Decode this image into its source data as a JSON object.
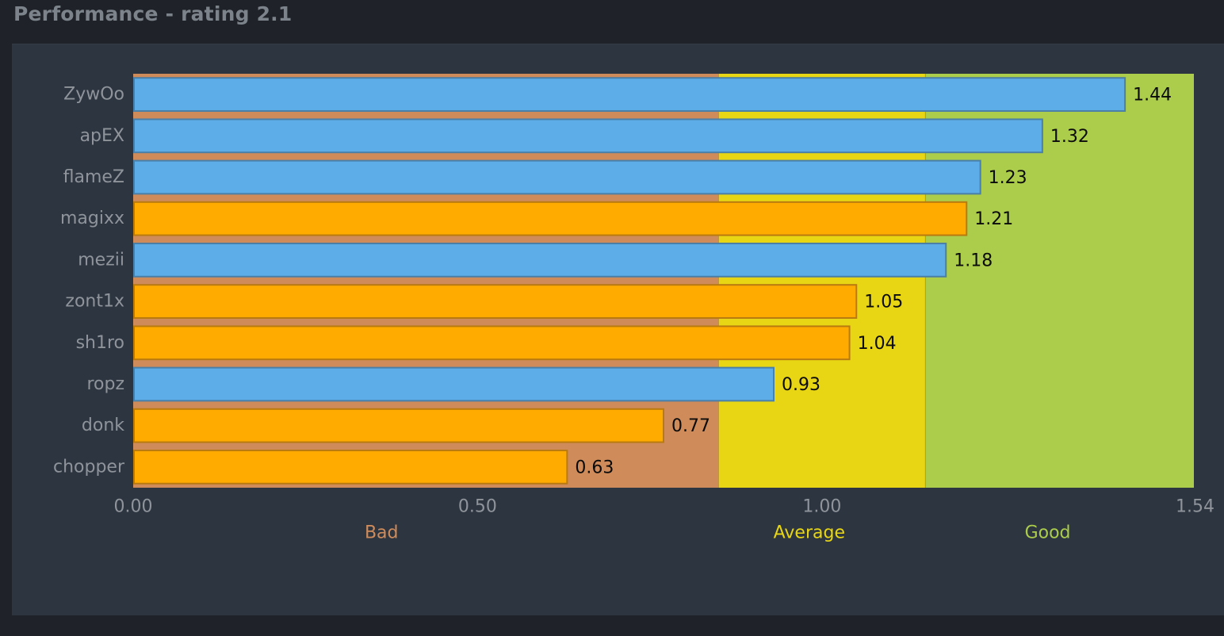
{
  "page": {
    "title": "Performance - rating 2.1"
  },
  "colors": {
    "team_a": "#5daee8",
    "team_b": "#ffab00",
    "bar_border_a": "#4a7fa8",
    "bar_border_b": "#b97b10",
    "band_bad": "#cf8b5a",
    "band_average": "#e8d614",
    "band_good": "#abcd4b",
    "label_bad": "#cf8b5a",
    "label_average": "#e8d614",
    "label_good": "#abcd4b",
    "tick": "#8f949b",
    "value": "#0b0b0b"
  },
  "chart_data": {
    "type": "bar",
    "orientation": "horizontal",
    "title": "Performance - rating 2.1",
    "categories": [
      "ZywOo",
      "apEX",
      "flameZ",
      "magixx",
      "mezii",
      "zont1x",
      "sh1ro",
      "ropz",
      "donk",
      "chopper"
    ],
    "values": [
      1.44,
      1.32,
      1.23,
      1.21,
      1.18,
      1.05,
      1.04,
      0.93,
      0.77,
      0.63
    ],
    "value_labels": [
      "1.44",
      "1.32",
      "1.23",
      "1.21",
      "1.18",
      "1.05",
      "1.04",
      "0.93",
      "0.77",
      "0.63"
    ],
    "team": [
      "a",
      "a",
      "a",
      "b",
      "a",
      "b",
      "b",
      "a",
      "b",
      "b"
    ],
    "xlim": [
      0,
      1.54
    ],
    "x_ticks": [
      0,
      0.5,
      1.0,
      1.54
    ],
    "x_tick_labels": [
      "0.00",
      "0.50",
      "1.00",
      "1.54"
    ],
    "bands": [
      {
        "label": "Bad",
        "from": 0,
        "to": 0.85,
        "color_key": "band_bad",
        "label_color_key": "label_bad"
      },
      {
        "label": "Average",
        "from": 0.85,
        "to": 1.15,
        "color_key": "band_average",
        "label_color_key": "label_average"
      },
      {
        "label": "Good",
        "from": 1.15,
        "to": 1.54,
        "color_key": "band_good",
        "label_color_key": "label_good"
      }
    ],
    "grid": false,
    "legend": "none"
  }
}
